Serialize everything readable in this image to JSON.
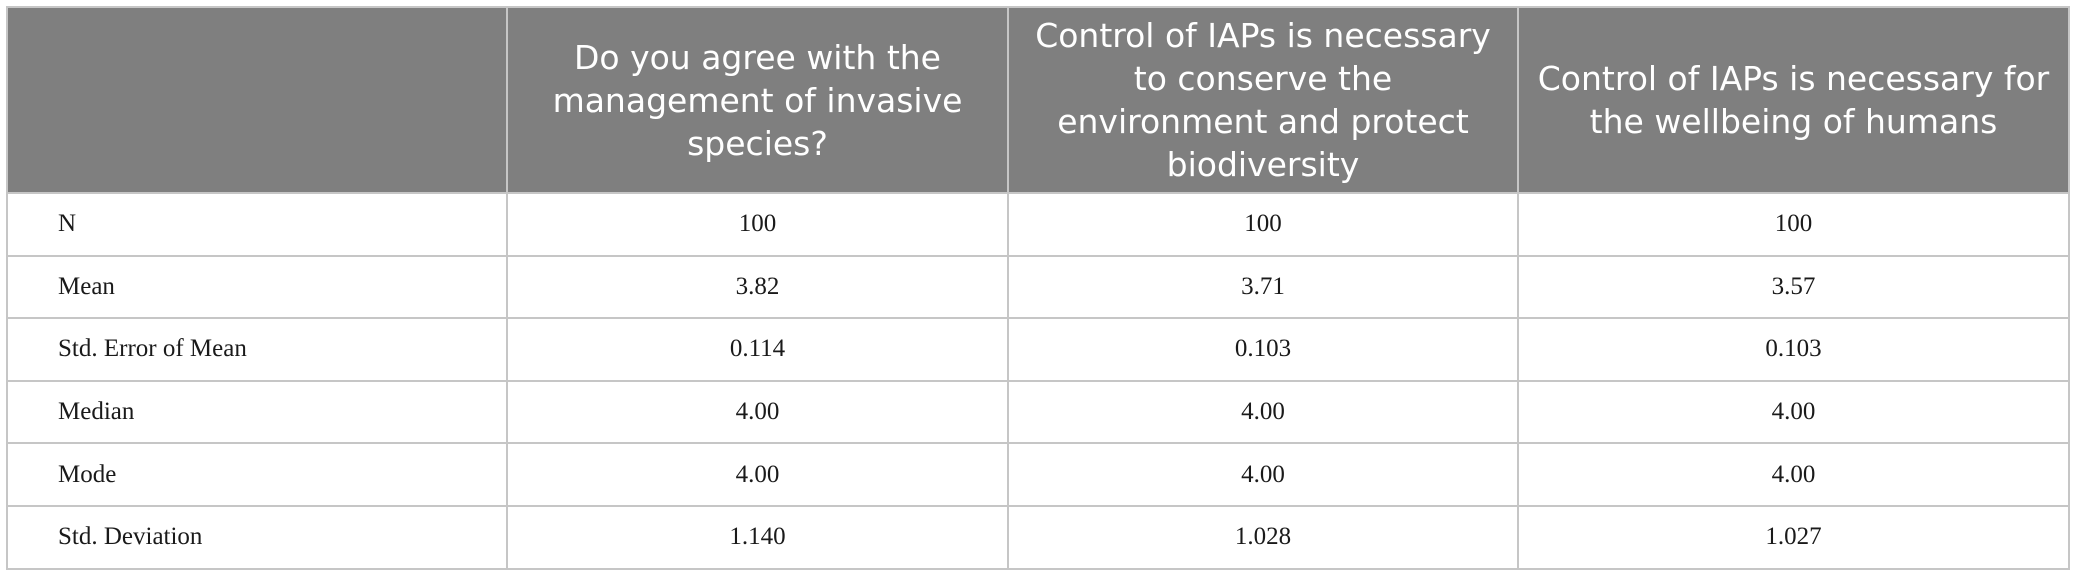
{
  "table": {
    "columns": [
      "",
      "Do you agree with the management of invasive species?",
      "Control of IAPs is necessary to conserve the environment and protect biodiversity",
      "Control of IAPs is necessary for the wellbeing of humans"
    ],
    "rows": [
      {
        "label": "N",
        "values": [
          "100",
          "100",
          "100"
        ]
      },
      {
        "label": "Mean",
        "values": [
          "3.82",
          "3.71",
          "3.57"
        ]
      },
      {
        "label": "Std. Error of Mean",
        "values": [
          "0.114",
          "0.103",
          "0.103"
        ]
      },
      {
        "label": "Median",
        "values": [
          "4.00",
          "4.00",
          "4.00"
        ]
      },
      {
        "label": "Mode",
        "values": [
          "4.00",
          "4.00",
          "4.00"
        ]
      },
      {
        "label": "Std. Deviation",
        "values": [
          "1.140",
          "1.028",
          "1.027"
        ]
      }
    ]
  },
  "colors": {
    "header_bg": "#7f7f7f",
    "header_text": "#ffffff",
    "grid": "#c6c6c6"
  }
}
